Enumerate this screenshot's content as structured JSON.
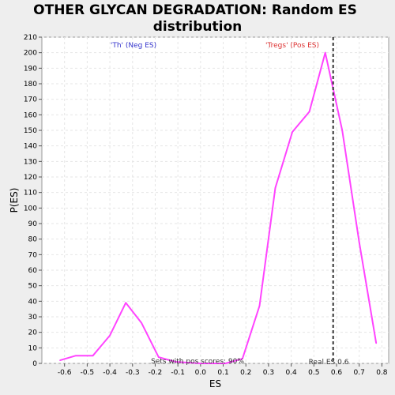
{
  "chart_data": {
    "type": "line",
    "title": "OTHER GLYCAN DEGRADATION: Random ES distribution",
    "title_lines": [
      "OTHER GLYCAN DEGRADATION: Random ES",
      "distribution"
    ],
    "xlabel": "ES",
    "ylabel": "P(ES)",
    "xlim": [
      -0.7,
      0.83
    ],
    "ylim": [
      0,
      210
    ],
    "xticks": [
      -0.6,
      -0.5,
      -0.4,
      -0.3,
      -0.2,
      -0.1,
      0.0,
      0.1,
      0.2,
      0.3,
      0.4,
      0.5,
      0.6,
      0.7,
      0.8
    ],
    "xtick_labels": [
      "-0.6",
      "-0.5",
      "-0.4",
      "-0.3",
      "-0.2",
      "-0.1",
      "0.0",
      "0.1",
      "0.2",
      "0.3",
      "0.4",
      "0.5",
      "0.6",
      "0.7",
      "0.8"
    ],
    "yticks": [
      0,
      10,
      20,
      30,
      40,
      50,
      60,
      70,
      80,
      90,
      100,
      110,
      120,
      130,
      140,
      150,
      160,
      170,
      180,
      190,
      200,
      210
    ],
    "ytick_labels": [
      "0",
      "10",
      "20",
      "30",
      "40",
      "50",
      "60",
      "70",
      "80",
      "90",
      "100",
      "110",
      "120",
      "130",
      "140",
      "150",
      "160",
      "170",
      "180",
      "190",
      "200",
      "210"
    ],
    "grid": true,
    "series": [
      {
        "x": [
          -0.62,
          -0.55,
          -0.475,
          -0.4,
          -0.33,
          -0.26,
          -0.185,
          -0.11,
          0.0,
          0.11,
          0.185,
          0.26,
          0.33,
          0.405,
          0.48,
          0.55,
          0.625,
          0.7,
          0.775
        ],
        "y": [
          2,
          5,
          5,
          18,
          39,
          26,
          4,
          1,
          0,
          0,
          3,
          37,
          113,
          149,
          162,
          200,
          150,
          78,
          13
        ]
      }
    ],
    "vline": {
      "x": 0.585
    },
    "annotations": {
      "neg_label": "'Th' (Neg ES)",
      "pos_label": "'Tregs' (Pos ES)",
      "pos_scores": "Sets with pos scores: 90%",
      "real_es": "Real ES 0.6"
    },
    "colors": {
      "line": "#ff44ff",
      "neg_label": "#3333cc",
      "pos_label": "#dd3333",
      "vline": "#333333",
      "grid": "#e6e6e6",
      "plot_bg": "#ffffff",
      "page_bg": "#eeeeee"
    }
  }
}
